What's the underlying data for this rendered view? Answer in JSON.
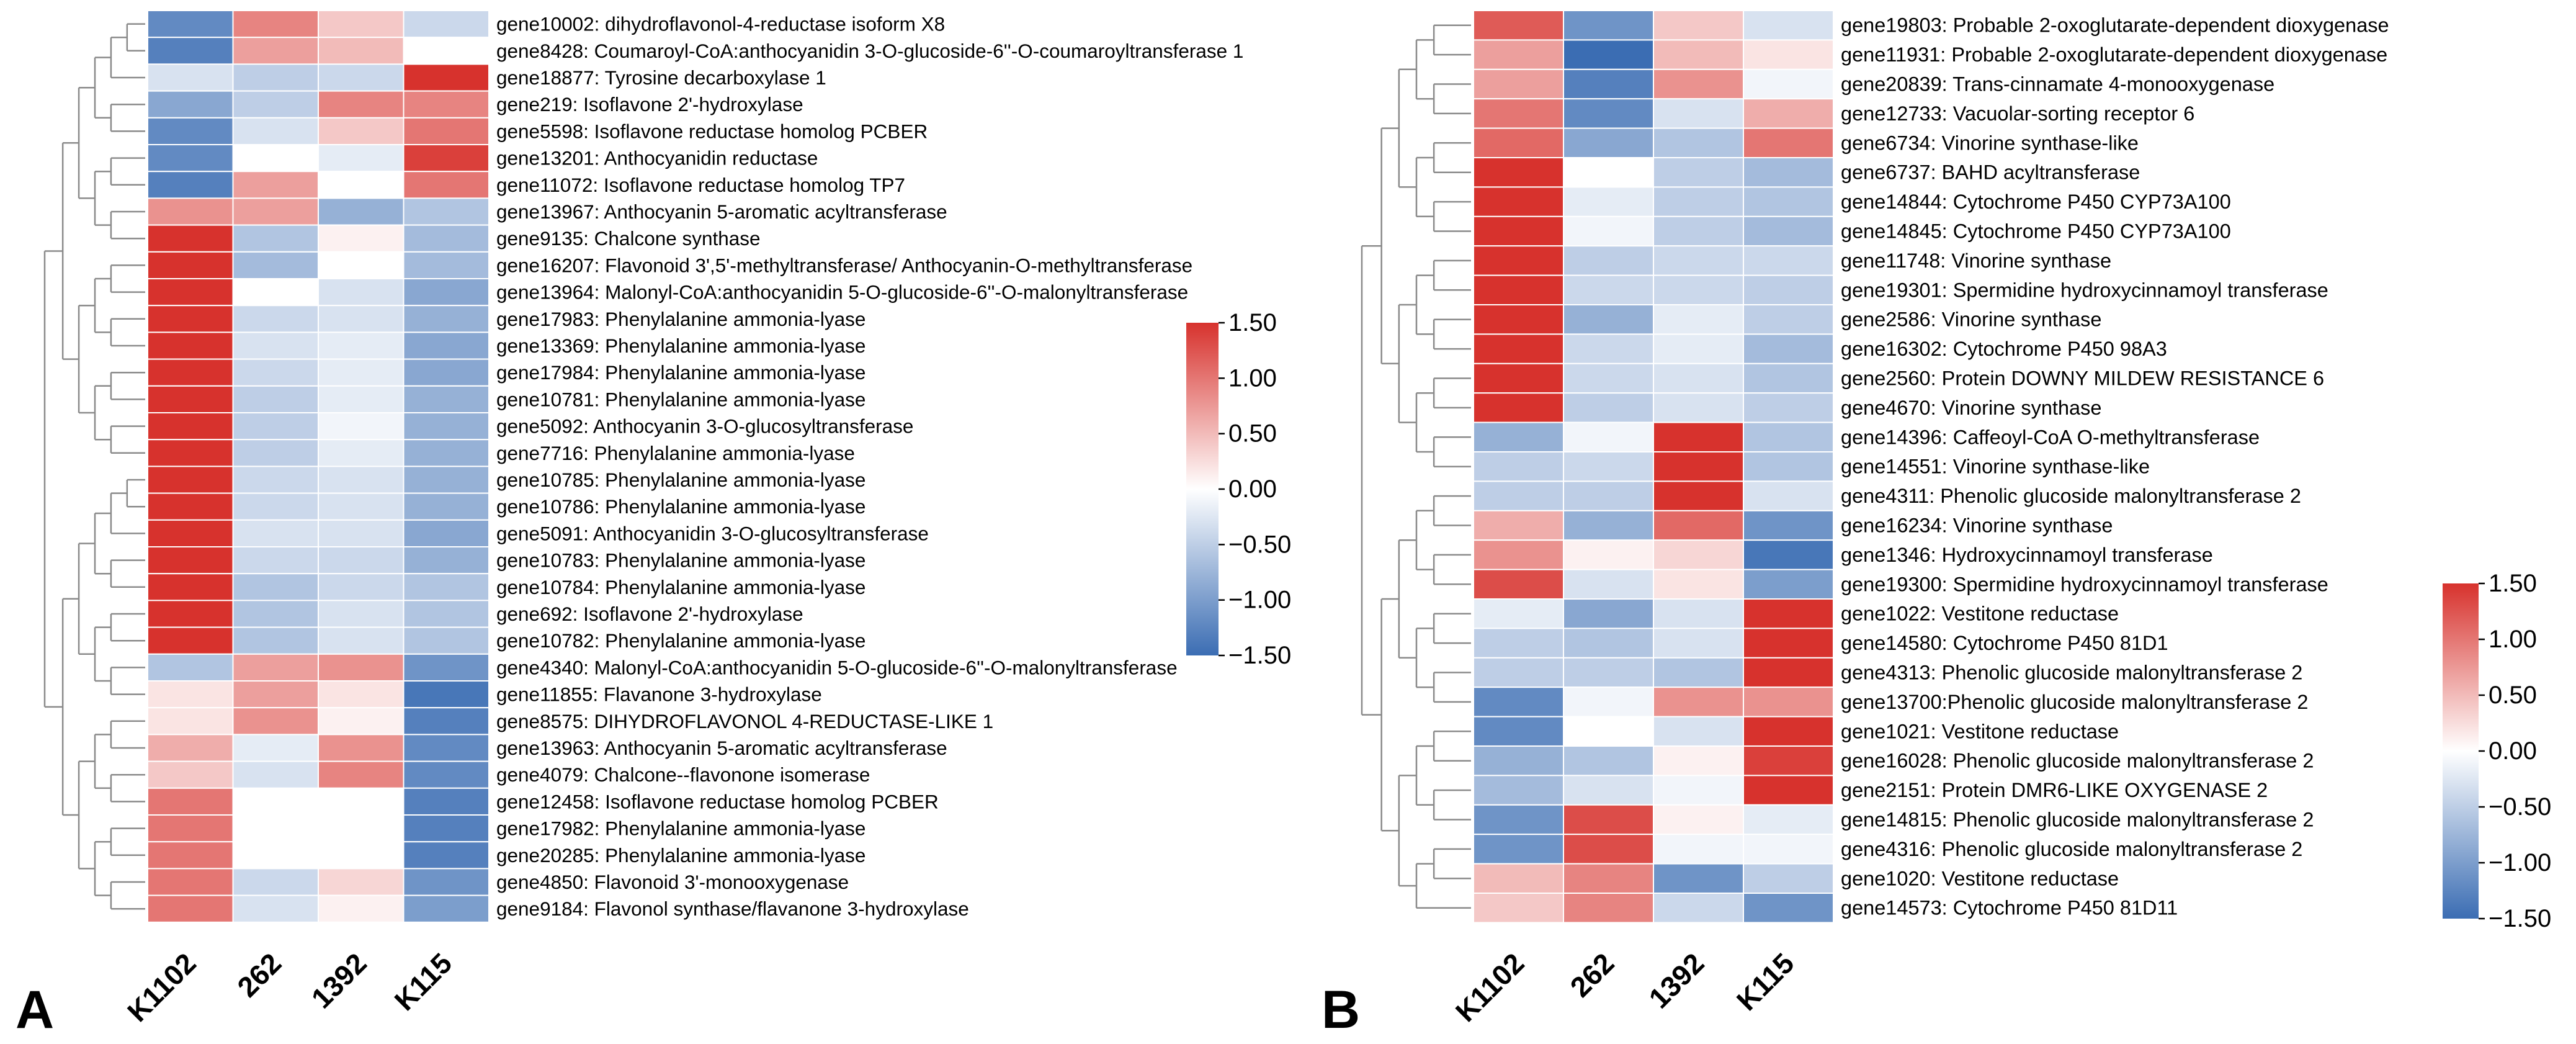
{
  "figure": {
    "colorscale": {
      "min": -1.5,
      "max": 1.5,
      "low_color": "#3b6db3",
      "mid_color": "#ffffff",
      "high_color": "#d7322d"
    }
  },
  "chart_data": [
    {
      "type": "heatmap",
      "panel": "A",
      "columns": [
        "K1102",
        "262",
        "1392",
        "K115"
      ],
      "colorbar_ticks": [
        "1.50",
        "1.00",
        "0.50",
        "0.00",
        "−0.50",
        "−1.00",
        "−1.50"
      ],
      "colorbar_tick_values": [
        1.5,
        1.0,
        0.5,
        0.0,
        -0.5,
        -1.0,
        -1.5
      ],
      "rows": [
        "gene10002: dihydroflavonol-4-reductase isoform X8",
        "gene8428: Coumaroyl-CoA:anthocyanidin 3-O-glucoside-6''-O-coumaroyltransferase 1",
        "gene18877: Tyrosine decarboxylase 1",
        "gene219: Isoflavone 2'-hydroxylase",
        "gene5598: Isoflavone reductase homolog PCBER",
        "gene13201: Anthocyanidin reductase",
        "gene11072: Isoflavone reductase homolog TP7",
        "gene13967: Anthocyanin 5-aromatic acyltransferase",
        "gene9135: Chalcone synthase",
        "gene16207: Flavonoid 3',5'-methyltransferase/ Anthocyanin-O-methyltransferase",
        "gene13964: Malonyl-CoA:anthocyanidin 5-O-glucoside-6''-O-malonyltransferase",
        "gene17983: Phenylalanine ammonia-lyase",
        "gene13369: Phenylalanine ammonia-lyase",
        "gene17984: Phenylalanine ammonia-lyase",
        "gene10781: Phenylalanine ammonia-lyase",
        "gene5092: Anthocyanin 3-O-glucosyltransferase",
        "gene7716: Phenylalanine ammonia-lyase",
        "gene10785: Phenylalanine ammonia-lyase",
        "gene10786: Phenylalanine ammonia-lyase",
        "gene5091: Anthocyanidin 3-O-glucosyltransferase",
        "gene10783: Phenylalanine ammonia-lyase",
        "gene10784: Phenylalanine ammonia-lyase",
        "gene692: Isoflavone 2'-hydroxylase",
        "gene10782: Phenylalanine ammonia-lyase",
        "gene4340: Malonyl-CoA:anthocyanidin 5-O-glucoside-6''-O-malonyltransferase",
        "gene11855: Flavanone 3-hydroxylase",
        "gene8575: DIHYDROFLAVONOL 4-REDUCTASE-LIKE 1",
        "gene13963: Anthocyanin 5-aromatic acyltransferase",
        "gene4079: Chalcone--flavonone isomerase",
        "gene12458: Isoflavone reductase homolog PCBER",
        "gene17982: Phenylalanine ammonia-lyase",
        "gene20285: Phenylalanine ammonia-lyase",
        "gene4850: Flavonoid 3'-monooxygenase",
        "gene9184: Flavonol synthase/flavanone 3-hydroxylase"
      ],
      "values": [
        [
          -1.2,
          0.9,
          0.4,
          -0.4
        ],
        [
          -1.3,
          0.7,
          0.5,
          0.0
        ],
        [
          -0.3,
          -0.5,
          -0.4,
          1.5
        ],
        [
          -0.9,
          -0.5,
          0.9,
          0.9
        ],
        [
          -1.2,
          -0.3,
          0.4,
          1.0
        ],
        [
          -1.2,
          0.0,
          -0.2,
          1.4
        ],
        [
          -1.3,
          0.7,
          0.0,
          1.0
        ],
        [
          0.8,
          0.7,
          -0.8,
          -0.6
        ],
        [
          1.5,
          -0.6,
          0.1,
          -0.7
        ],
        [
          1.5,
          -0.7,
          0.0,
          -0.7
        ],
        [
          1.5,
          0.0,
          -0.3,
          -0.9
        ],
        [
          1.5,
          -0.4,
          -0.3,
          -0.8
        ],
        [
          1.5,
          -0.3,
          -0.2,
          -0.9
        ],
        [
          1.5,
          -0.4,
          -0.2,
          -0.9
        ],
        [
          1.5,
          -0.5,
          -0.2,
          -0.8
        ],
        [
          1.5,
          -0.5,
          -0.1,
          -0.8
        ],
        [
          1.5,
          -0.5,
          -0.2,
          -0.8
        ],
        [
          1.5,
          -0.4,
          -0.3,
          -0.8
        ],
        [
          1.5,
          -0.4,
          -0.3,
          -0.8
        ],
        [
          1.5,
          -0.3,
          -0.3,
          -0.9
        ],
        [
          1.5,
          -0.4,
          -0.4,
          -0.8
        ],
        [
          1.5,
          -0.6,
          -0.4,
          -0.6
        ],
        [
          1.5,
          -0.6,
          -0.3,
          -0.6
        ],
        [
          1.5,
          -0.6,
          -0.3,
          -0.6
        ],
        [
          -0.6,
          0.7,
          0.8,
          -1.1
        ],
        [
          0.2,
          0.7,
          0.2,
          -1.4
        ],
        [
          0.2,
          0.8,
          0.1,
          -1.3
        ],
        [
          0.6,
          -0.2,
          0.8,
          -1.2
        ],
        [
          0.4,
          -0.3,
          0.9,
          -1.2
        ],
        [
          1.0,
          0.0,
          0.0,
          -1.3
        ],
        [
          1.0,
          0.0,
          0.0,
          -1.3
        ],
        [
          1.0,
          0.0,
          0.0,
          -1.3
        ],
        [
          1.0,
          -0.4,
          0.3,
          -1.1
        ],
        [
          1.0,
          -0.3,
          0.1,
          -1.0
        ]
      ]
    },
    {
      "type": "heatmap",
      "panel": "B",
      "columns": [
        "K1102",
        "262",
        "1392",
        "K115"
      ],
      "colorbar_ticks": [
        "1.50",
        "1.00",
        "0.50",
        "0.00",
        "−0.50",
        "−1.00",
        "−1.50"
      ],
      "colorbar_tick_values": [
        1.5,
        1.0,
        0.5,
        0.0,
        -0.5,
        -1.0,
        -1.5
      ],
      "rows": [
        "gene19803: Probable 2-oxoglutarate-dependent dioxygenase",
        "gene11931: Probable 2-oxoglutarate-dependent dioxygenase",
        "gene20839: Trans-cinnamate 4-monooxygenase",
        "gene12733: Vacuolar-sorting receptor 6",
        "gene6734: Vinorine synthase-like",
        "gene6737: BAHD acyltransferase",
        "gene14844: Cytochrome P450 CYP73A100",
        "gene14845: Cytochrome P450 CYP73A100",
        "gene11748: Vinorine synthase",
        "gene19301: Spermidine hydroxycinnamoyl transferase",
        "gene2586: Vinorine synthase",
        "gene16302: Cytochrome P450 98A3",
        "gene2560: Protein DOWNY MILDEW RESISTANCE 6",
        "gene4670: Vinorine synthase",
        "gene14396: Caffeoyl-CoA O-methyltransferase",
        "gene14551: Vinorine synthase-like",
        "gene4311: Phenolic glucoside malonyltransferase 2",
        "gene16234: Vinorine synthase",
        "gene1346: Hydroxycinnamoyl transferase",
        "gene19300: Spermidine hydroxycinnamoyl transferase",
        "gene1022: Vestitone reductase",
        "gene14580: Cytochrome P450 81D1",
        "gene4313: Phenolic glucoside malonyltransferase 2",
        "gene13700:Phenolic glucoside malonyltransferase 2",
        "gene1021: Vestitone reductase",
        "gene16028: Phenolic glucoside malonyltransferase 2",
        "gene2151: Protein DMR6-LIKE OXYGENASE 2",
        "gene14815: Phenolic glucoside malonyltransferase 2",
        "gene4316: Phenolic glucoside malonyltransferase 2",
        "gene1020: Vestitone reductase",
        "gene14573: Cytochrome P450 81D11"
      ],
      "values": [
        [
          1.2,
          -1.1,
          0.4,
          -0.3
        ],
        [
          0.7,
          -1.5,
          0.5,
          0.2
        ],
        [
          0.7,
          -1.3,
          0.8,
          -0.1
        ],
        [
          1.0,
          -1.2,
          -0.3,
          0.6
        ],
        [
          1.1,
          -0.9,
          -0.6,
          1.0
        ],
        [
          1.5,
          0.0,
          -0.5,
          -0.7
        ],
        [
          1.5,
          -0.2,
          -0.5,
          -0.6
        ],
        [
          1.5,
          -0.1,
          -0.5,
          -0.7
        ],
        [
          1.5,
          -0.5,
          -0.4,
          -0.4
        ],
        [
          1.5,
          -0.4,
          -0.4,
          -0.5
        ],
        [
          1.5,
          -0.8,
          -0.2,
          -0.5
        ],
        [
          1.5,
          -0.4,
          -0.2,
          -0.7
        ],
        [
          1.5,
          -0.4,
          -0.3,
          -0.6
        ],
        [
          1.5,
          -0.5,
          -0.3,
          -0.5
        ],
        [
          -0.8,
          -0.1,
          1.5,
          -0.6
        ],
        [
          -0.5,
          -0.4,
          1.5,
          -0.6
        ],
        [
          -0.5,
          -0.5,
          1.5,
          -0.3
        ],
        [
          0.6,
          -0.8,
          1.1,
          -1.1
        ],
        [
          0.8,
          0.1,
          0.3,
          -1.4
        ],
        [
          1.3,
          -0.3,
          0.2,
          -1.0
        ],
        [
          -0.2,
          -0.9,
          -0.3,
          1.5
        ],
        [
          -0.5,
          -0.6,
          -0.3,
          1.5
        ],
        [
          -0.5,
          -0.5,
          -0.6,
          1.5
        ],
        [
          -1.2,
          -0.1,
          0.8,
          0.8
        ],
        [
          -1.2,
          0.0,
          -0.3,
          1.5
        ],
        [
          -0.8,
          -0.6,
          0.1,
          1.4
        ],
        [
          -0.7,
          -0.3,
          -0.1,
          1.5
        ],
        [
          -1.1,
          1.3,
          0.1,
          -0.2
        ],
        [
          -1.1,
          1.3,
          -0.1,
          -0.1
        ],
        [
          0.5,
          0.9,
          -1.1,
          -0.5
        ],
        [
          0.4,
          0.9,
          -0.4,
          -1.1
        ]
      ]
    }
  ],
  "panel_labels": {
    "a": "A",
    "b": "B"
  }
}
